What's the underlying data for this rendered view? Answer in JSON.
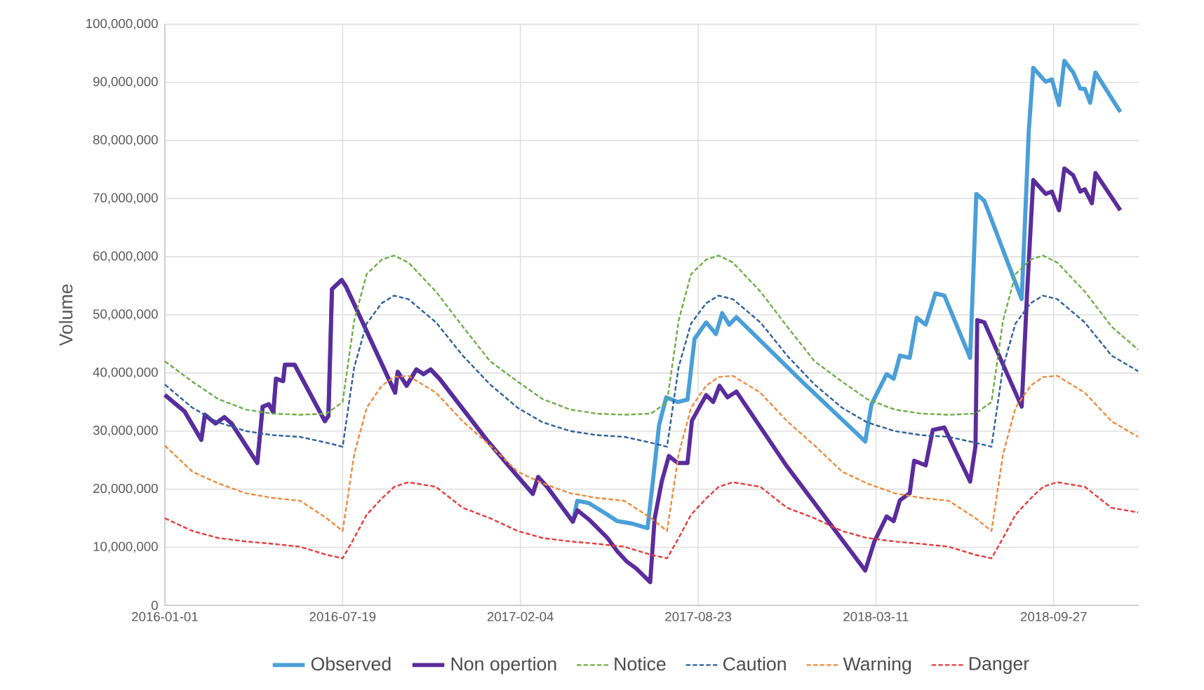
{
  "chart_data": {
    "type": "line",
    "ylabel": "Volume",
    "xlim": [
      "2016-01-01",
      "2019-01-01"
    ],
    "xticks": [
      "2016-01-01",
      "2016-07-19",
      "2017-02-04",
      "2017-08-23",
      "2018-03-11",
      "2018-09-27"
    ],
    "ylim": [
      0,
      100000000
    ],
    "yticks": [
      {
        "value": 0,
        "label": "0"
      },
      {
        "value": 10000000,
        "label": "10,000,000"
      },
      {
        "value": 20000000,
        "label": "20,000,000"
      },
      {
        "value": 30000000,
        "label": "30,000,000"
      },
      {
        "value": 40000000,
        "label": "40,000,000"
      },
      {
        "value": 50000000,
        "label": "50,000,000"
      },
      {
        "value": 60000000,
        "label": "60,000,000"
      },
      {
        "value": 70000000,
        "label": "70,000,000"
      },
      {
        "value": 80000000,
        "label": "80,000,000"
      },
      {
        "value": 90000000,
        "label": "90,000,000"
      },
      {
        "value": 100000000,
        "label": "100,000,000"
      }
    ],
    "grid": true,
    "legend": "bottom",
    "series": [
      {
        "name": "Observed",
        "color": "#4a9fd8",
        "line_style": "solid",
        "x": [
          "2016-01-01",
          "2016-01-23",
          "2016-02-11",
          "2016-02-15",
          "2016-02-27",
          "2016-03-08",
          "2016-03-16",
          "2016-04-14",
          "2016-04-20",
          "2016-04-27",
          "2016-05-02",
          "2016-05-05",
          "2016-05-13",
          "2016-05-15",
          "2016-05-26",
          "2016-06-29",
          "2016-07-03",
          "2016-07-07",
          "2016-07-18",
          "2016-07-23",
          "2016-09-16",
          "2016-09-19",
          "2016-09-29",
          "2016-10-10",
          "2016-10-18",
          "2016-10-26",
          "2016-11-05",
          "2016-12-28",
          "2017-01-28",
          "2017-02-18",
          "2017-02-24",
          "2017-03-06",
          "2017-04-04",
          "2017-04-09",
          "2017-04-22",
          "2017-05-13",
          "2017-05-24",
          "2017-06-09",
          "2017-06-27",
          "2017-07-03",
          "2017-07-10",
          "2017-07-18",
          "2017-07-31",
          "2017-08-11",
          "2017-08-19",
          "2017-09-01",
          "2017-09-12",
          "2017-09-19",
          "2017-09-27",
          "2017-10-05",
          "2017-12-20",
          "2018-02-27",
          "2018-03-06",
          "2018-03-23",
          "2018-03-31",
          "2018-04-07",
          "2018-04-18",
          "2018-04-26",
          "2018-05-06",
          "2018-05-17",
          "2018-05-27",
          "2018-06-25",
          "2018-07-02",
          "2018-07-11",
          "2018-08-22",
          "2018-08-30",
          "2018-09-04",
          "2018-09-18",
          "2018-09-25",
          "2018-10-03",
          "2018-10-09",
          "2018-10-19",
          "2018-10-27",
          "2018-11-01",
          "2018-11-07",
          "2018-11-13",
          "2018-12-11"
        ],
        "values": [
          36200000,
          33400000,
          28500000,
          32800000,
          31300000,
          32400000,
          31300000,
          24500000,
          34200000,
          34600000,
          33200000,
          39000000,
          38600000,
          41400000,
          41400000,
          31700000,
          32600000,
          54400000,
          56000000,
          54800000,
          36600000,
          40200000,
          37800000,
          40600000,
          39800000,
          40600000,
          39000000,
          28500000,
          22900000,
          19200000,
          22100000,
          20400000,
          14400000,
          18000000,
          17600000,
          15600000,
          14500000,
          14100000,
          13300000,
          21300000,
          31000000,
          35800000,
          35000000,
          35400000,
          45900000,
          48700000,
          46700000,
          50300000,
          48300000,
          49600000,
          38200000,
          28200000,
          34600000,
          39800000,
          39000000,
          43000000,
          42600000,
          49500000,
          48300000,
          53700000,
          53300000,
          42600000,
          70800000,
          69600000,
          52700000,
          81700000,
          92500000,
          90100000,
          90500000,
          86100000,
          93700000,
          91700000,
          88900000,
          88900000,
          86500000,
          91700000,
          84900000
        ]
      },
      {
        "name": "Non opertion",
        "color": "#5b2c9c",
        "line_style": "solid",
        "x": [
          "2016-01-01",
          "2016-01-23",
          "2016-02-11",
          "2016-02-15",
          "2016-02-27",
          "2016-03-08",
          "2016-03-16",
          "2016-04-14",
          "2016-04-20",
          "2016-04-27",
          "2016-05-02",
          "2016-05-05",
          "2016-05-13",
          "2016-05-15",
          "2016-05-26",
          "2016-06-29",
          "2016-07-03",
          "2016-07-07",
          "2016-07-18",
          "2016-07-23",
          "2016-09-16",
          "2016-09-19",
          "2016-09-29",
          "2016-10-10",
          "2016-10-18",
          "2016-10-26",
          "2016-11-05",
          "2016-12-28",
          "2017-01-28",
          "2017-02-18",
          "2017-02-24",
          "2017-03-06",
          "2017-04-04",
          "2017-04-09",
          "2017-04-22",
          "2017-05-13",
          "2017-05-24",
          "2017-06-04",
          "2017-06-14",
          "2017-06-30",
          "2017-07-05",
          "2017-07-13",
          "2017-07-21",
          "2017-07-31",
          "2017-08-11",
          "2017-08-16",
          "2017-09-01",
          "2017-09-09",
          "2017-09-16",
          "2017-09-25",
          "2017-10-05",
          "2017-11-30",
          "2018-02-27",
          "2018-03-09",
          "2018-03-23",
          "2018-03-31",
          "2018-04-07",
          "2018-04-18",
          "2018-04-23",
          "2018-05-06",
          "2018-05-14",
          "2018-05-27",
          "2018-06-25",
          "2018-07-01",
          "2018-07-03",
          "2018-07-11",
          "2018-08-22",
          "2018-08-28",
          "2018-09-04",
          "2018-09-18",
          "2018-09-25",
          "2018-10-03",
          "2018-10-09",
          "2018-10-19",
          "2018-10-27",
          "2018-11-01",
          "2018-11-09",
          "2018-11-13",
          "2018-12-11"
        ],
        "values": [
          36200000,
          33400000,
          28500000,
          32800000,
          31300000,
          32400000,
          31300000,
          24500000,
          34200000,
          34600000,
          33200000,
          39000000,
          38600000,
          41400000,
          41400000,
          31700000,
          32600000,
          54400000,
          56000000,
          54800000,
          36600000,
          40200000,
          37800000,
          40600000,
          39800000,
          40600000,
          39000000,
          28500000,
          22900000,
          19200000,
          22100000,
          20400000,
          14400000,
          16400000,
          14800000,
          11600000,
          9300000,
          7500000,
          6400000,
          4000000,
          14900000,
          21300000,
          25700000,
          24500000,
          24500000,
          31800000,
          36200000,
          35000000,
          37800000,
          35800000,
          36800000,
          24100000,
          6000000,
          10900000,
          15300000,
          14500000,
          18100000,
          19300000,
          24900000,
          24100000,
          30200000,
          30600000,
          21300000,
          27400000,
          49100000,
          48700000,
          34200000,
          53500000,
          73200000,
          70800000,
          71200000,
          68000000,
          75200000,
          74000000,
          71200000,
          71600000,
          69200000,
          74400000,
          68000000
        ]
      },
      {
        "name": "Notice",
        "color": "#70ad47",
        "line_style": "dashed",
        "x": [
          "2016-01-01",
          "2016-02-01",
          "2016-03-01",
          "2016-04-01",
          "2016-05-01",
          "2016-06-01",
          "2016-07-01",
          "2016-07-19",
          "2016-08-01",
          "2016-08-15",
          "2016-09-01",
          "2016-09-15",
          "2016-10-01",
          "2016-11-01",
          "2016-12-01",
          "2017-01-01",
          "2017-02-01",
          "2017-03-01",
          "2017-04-01",
          "2017-05-01",
          "2017-06-01",
          "2017-07-01",
          "2017-07-19",
          "2017-08-01",
          "2017-08-15",
          "2017-09-01",
          "2017-09-15",
          "2017-10-01",
          "2017-11-01",
          "2017-12-01",
          "2018-01-01",
          "2018-02-01",
          "2018-03-01",
          "2018-04-01",
          "2018-05-01",
          "2018-06-01",
          "2018-07-01",
          "2018-07-19",
          "2018-08-01",
          "2018-08-15",
          "2018-09-01",
          "2018-09-15",
          "2018-10-01",
          "2018-11-01",
          "2018-12-01",
          "2018-12-31"
        ],
        "values": [
          42000000,
          38500000,
          35500000,
          33700000,
          33000000,
          32800000,
          33000000,
          35000000,
          49000000,
          57000000,
          59500000,
          60200000,
          59000000,
          54000000,
          48000000,
          42000000,
          38500000,
          35500000,
          33700000,
          33000000,
          32800000,
          33000000,
          35000000,
          49000000,
          57000000,
          59500000,
          60200000,
          59000000,
          54000000,
          48000000,
          42000000,
          38500000,
          35500000,
          33700000,
          33000000,
          32800000,
          33000000,
          35000000,
          49000000,
          57000000,
          59500000,
          60200000,
          59000000,
          54000000,
          48000000,
          44000000
        ]
      },
      {
        "name": "Caution",
        "color": "#2e5f9e",
        "line_style": "dashed",
        "x": [
          "2016-01-01",
          "2016-02-01",
          "2016-03-01",
          "2016-04-01",
          "2016-05-01",
          "2016-06-01",
          "2016-07-01",
          "2016-07-19",
          "2016-08-01",
          "2016-08-15",
          "2016-09-01",
          "2016-09-15",
          "2016-10-01",
          "2016-11-01",
          "2016-12-01",
          "2017-01-01",
          "2017-02-01",
          "2017-03-01",
          "2017-04-01",
          "2017-05-01",
          "2017-06-01",
          "2017-07-01",
          "2017-07-19",
          "2017-08-01",
          "2017-08-15",
          "2017-09-01",
          "2017-09-15",
          "2017-10-01",
          "2017-11-01",
          "2017-12-01",
          "2018-01-01",
          "2018-02-01",
          "2018-03-01",
          "2018-04-01",
          "2018-05-01",
          "2018-06-01",
          "2018-07-01",
          "2018-07-19",
          "2018-08-01",
          "2018-08-15",
          "2018-09-01",
          "2018-09-15",
          "2018-10-01",
          "2018-11-01",
          "2018-12-01",
          "2018-12-31"
        ],
        "values": [
          38000000,
          34000000,
          31500000,
          30000000,
          29300000,
          29000000,
          28000000,
          27300000,
          41000000,
          48500000,
          52000000,
          53300000,
          52700000,
          48700000,
          43000000,
          38000000,
          34000000,
          31500000,
          30000000,
          29300000,
          29000000,
          28000000,
          27300000,
          41000000,
          48500000,
          52000000,
          53300000,
          52700000,
          48700000,
          43000000,
          38000000,
          34000000,
          31500000,
          30000000,
          29300000,
          29000000,
          28000000,
          27300000,
          41000000,
          48500000,
          52000000,
          53300000,
          52700000,
          48700000,
          43000000,
          40300000
        ]
      },
      {
        "name": "Warning",
        "color": "#f08a3c",
        "line_style": "dashed",
        "x": [
          "2016-01-01",
          "2016-02-01",
          "2016-03-01",
          "2016-04-01",
          "2016-05-01",
          "2016-06-01",
          "2016-07-01",
          "2016-07-19",
          "2016-08-01",
          "2016-08-15",
          "2016-09-01",
          "2016-09-15",
          "2016-10-01",
          "2016-11-01",
          "2016-12-01",
          "2017-01-01",
          "2017-02-01",
          "2017-03-01",
          "2017-04-01",
          "2017-05-01",
          "2017-06-01",
          "2017-07-01",
          "2017-07-19",
          "2017-08-01",
          "2017-08-15",
          "2017-09-01",
          "2017-09-15",
          "2017-10-01",
          "2017-11-01",
          "2017-12-01",
          "2018-01-01",
          "2018-02-01",
          "2018-03-01",
          "2018-04-01",
          "2018-05-01",
          "2018-06-01",
          "2018-07-01",
          "2018-07-19",
          "2018-08-01",
          "2018-08-15",
          "2018-09-01",
          "2018-09-15",
          "2018-10-01",
          "2018-11-01",
          "2018-12-01",
          "2018-12-31"
        ],
        "values": [
          27500000,
          23000000,
          21000000,
          19300000,
          18500000,
          18000000,
          15000000,
          12800000,
          26000000,
          34000000,
          37800000,
          39300000,
          39500000,
          36600000,
          31700000,
          27500000,
          23000000,
          21000000,
          19300000,
          18500000,
          18000000,
          15000000,
          12800000,
          26000000,
          34000000,
          37800000,
          39300000,
          39500000,
          36600000,
          31700000,
          27500000,
          23000000,
          21000000,
          19300000,
          18500000,
          18000000,
          15000000,
          12800000,
          26000000,
          34000000,
          37800000,
          39300000,
          39500000,
          36600000,
          31700000,
          29000000
        ]
      },
      {
        "name": "Danger",
        "color": "#e83b3b",
        "line_style": "dashed",
        "x": [
          "2016-01-01",
          "2016-02-01",
          "2016-03-01",
          "2016-04-01",
          "2016-05-01",
          "2016-06-01",
          "2016-07-01",
          "2016-07-19",
          "2016-08-01",
          "2016-08-15",
          "2016-09-01",
          "2016-09-15",
          "2016-10-01",
          "2016-11-01",
          "2016-12-01",
          "2017-01-01",
          "2017-02-01",
          "2017-03-01",
          "2017-04-01",
          "2017-05-01",
          "2017-06-01",
          "2017-07-01",
          "2017-07-19",
          "2017-08-01",
          "2017-08-15",
          "2017-09-01",
          "2017-09-15",
          "2017-10-01",
          "2017-11-01",
          "2017-12-01",
          "2018-01-01",
          "2018-02-01",
          "2018-03-01",
          "2018-04-01",
          "2018-05-01",
          "2018-06-01",
          "2018-07-01",
          "2018-07-19",
          "2018-08-01",
          "2018-08-15",
          "2018-09-01",
          "2018-09-15",
          "2018-10-01",
          "2018-11-01",
          "2018-12-01",
          "2018-12-31"
        ],
        "values": [
          15000000,
          12800000,
          11600000,
          11000000,
          10600000,
          10100000,
          8700000,
          8100000,
          11600000,
          15600000,
          18400000,
          20400000,
          21200000,
          20400000,
          16800000,
          15000000,
          12800000,
          11600000,
          11000000,
          10600000,
          10100000,
          8700000,
          8100000,
          11600000,
          15600000,
          18400000,
          20400000,
          21200000,
          20400000,
          16800000,
          15000000,
          12800000,
          11600000,
          11000000,
          10600000,
          10100000,
          8700000,
          8100000,
          11600000,
          15600000,
          18400000,
          20400000,
          21200000,
          20400000,
          16800000,
          16000000
        ]
      }
    ]
  }
}
